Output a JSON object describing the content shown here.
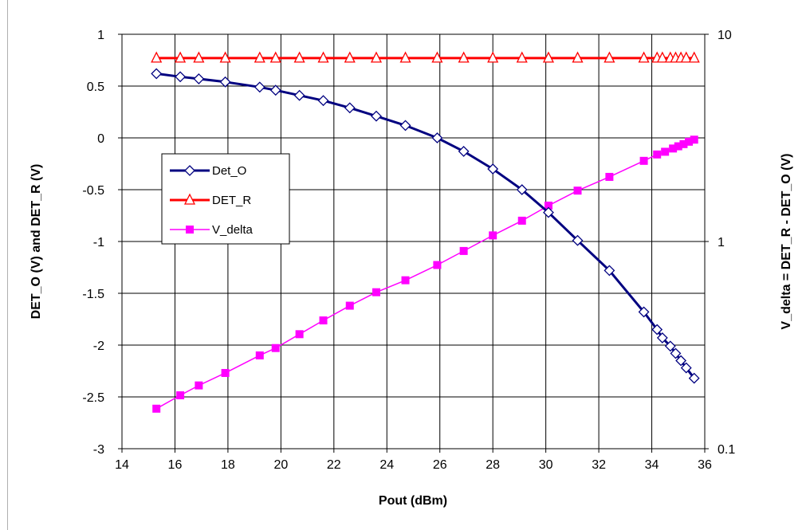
{
  "chart_data": {
    "type": "line",
    "xlabel": "Pout (dBm)",
    "ylabel": "DET_O (V) and DET_R (V)",
    "y2label": "V_delta = DET_R - DET_O (V)",
    "xlim": [
      14,
      36
    ],
    "ylim": [
      -3,
      1
    ],
    "y2lim": [
      0.1,
      10
    ],
    "y2scale": "log",
    "xticks": [
      "14",
      "16",
      "18",
      "20",
      "22",
      "24",
      "26",
      "28",
      "30",
      "32",
      "34",
      "36"
    ],
    "yticks": [
      "1",
      "0.5",
      "0",
      "-0.5",
      "-1",
      "-1.5",
      "-2",
      "-2.5",
      "-3"
    ],
    "y2ticks": [
      "10",
      "1",
      "0.1"
    ],
    "grid": true,
    "legend_position": "left-middle",
    "series": [
      {
        "name": "Det_O",
        "axis": "left",
        "color": "#000080",
        "marker": "diamond-open",
        "x": [
          15.3,
          16.2,
          16.9,
          17.9,
          19.2,
          19.8,
          20.7,
          21.6,
          22.6,
          23.6,
          24.7,
          25.9,
          26.9,
          28.0,
          29.1,
          30.1,
          31.2,
          32.4,
          33.7,
          34.2,
          34.4,
          34.7,
          34.9,
          35.1,
          35.3,
          35.6
        ],
        "y": [
          0.62,
          0.59,
          0.57,
          0.54,
          0.49,
          0.46,
          0.41,
          0.36,
          0.29,
          0.21,
          0.12,
          0.0,
          -0.13,
          -0.3,
          -0.5,
          -0.72,
          -0.99,
          -1.28,
          -1.68,
          -1.85,
          -1.93,
          -2.01,
          -2.08,
          -2.15,
          -2.22,
          -2.32
        ]
      },
      {
        "name": "DET_R",
        "axis": "left",
        "color": "#ff0000",
        "marker": "triangle-open",
        "x": [
          15.3,
          16.2,
          16.9,
          17.9,
          19.2,
          19.8,
          20.7,
          21.6,
          22.6,
          23.6,
          24.7,
          25.9,
          26.9,
          28.0,
          29.1,
          30.1,
          31.2,
          32.4,
          33.7,
          34.2,
          34.4,
          34.7,
          34.9,
          35.1,
          35.3,
          35.6
        ],
        "y": [
          0.77,
          0.77,
          0.77,
          0.77,
          0.77,
          0.77,
          0.77,
          0.77,
          0.77,
          0.77,
          0.77,
          0.77,
          0.77,
          0.77,
          0.77,
          0.77,
          0.77,
          0.77,
          0.77,
          0.77,
          0.77,
          0.77,
          0.77,
          0.77,
          0.77,
          0.77
        ]
      },
      {
        "name": "V_delta",
        "axis": "right",
        "color": "#ff00ff",
        "marker": "square-filled",
        "x": [
          15.3,
          16.2,
          16.9,
          17.9,
          19.2,
          19.8,
          20.7,
          21.6,
          22.6,
          23.6,
          24.7,
          25.9,
          26.9,
          28.0,
          29.1,
          30.1,
          31.2,
          32.4,
          33.7,
          34.2,
          34.5,
          34.8,
          35.0,
          35.2,
          35.4,
          35.6
        ],
        "y": [
          0.156,
          0.181,
          0.202,
          0.232,
          0.282,
          0.306,
          0.357,
          0.416,
          0.49,
          0.569,
          0.65,
          0.77,
          0.9,
          1.07,
          1.26,
          1.49,
          1.76,
          2.05,
          2.45,
          2.63,
          2.71,
          2.81,
          2.88,
          2.95,
          3.03,
          3.1
        ]
      }
    ]
  }
}
